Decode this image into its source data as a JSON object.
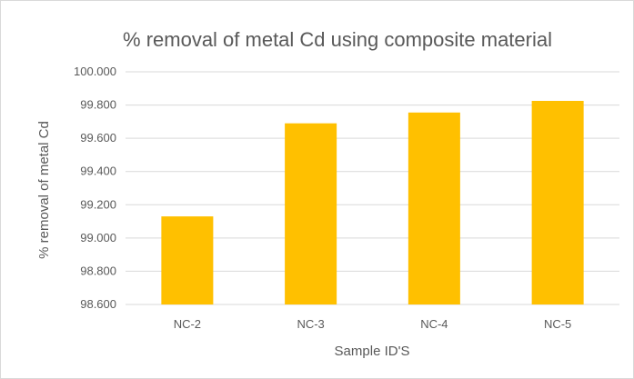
{
  "chart_data": {
    "type": "bar",
    "title": "% removal of metal Cd using composite material",
    "xlabel": "Sample ID'S",
    "ylabel": "% removal of metal Cd",
    "categories": [
      "NC-2",
      "NC-3",
      "NC-4",
      "NC-5"
    ],
    "values": [
      99.13,
      99.69,
      99.755,
      99.825
    ],
    "ylim": [
      98.6,
      100.0
    ],
    "yticks": [
      "98.600",
      "98.800",
      "99.000",
      "99.200",
      "99.400",
      "99.600",
      "99.800",
      "100.000"
    ],
    "grid": true,
    "legend": "none",
    "bar_color": "#FFC000"
  }
}
